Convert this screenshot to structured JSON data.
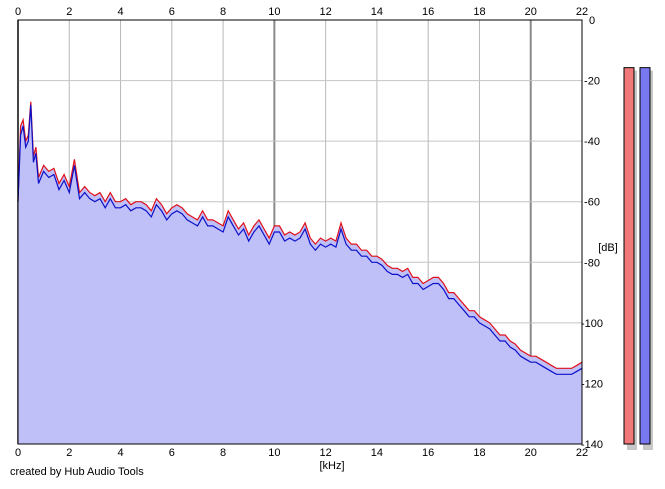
{
  "chart_data": {
    "type": "area",
    "xlabel": "[kHz]",
    "ylabel": "[dB]",
    "xlim": [
      0,
      22
    ],
    "ylim": [
      -140,
      0
    ],
    "x_ticks": [
      0,
      2,
      4,
      6,
      8,
      10,
      12,
      14,
      16,
      18,
      20,
      22
    ],
    "y_ticks": [
      0,
      -20,
      -40,
      -60,
      -80,
      -100,
      -120,
      -140
    ],
    "grid": true,
    "series": [
      {
        "color": "#e0101a",
        "points": [
          [
            0.0,
            -60
          ],
          [
            0.1,
            -35
          ],
          [
            0.2,
            -33
          ],
          [
            0.3,
            -40
          ],
          [
            0.4,
            -38
          ],
          [
            0.5,
            -27
          ],
          [
            0.6,
            -45
          ],
          [
            0.7,
            -42
          ],
          [
            0.8,
            -52
          ],
          [
            1.0,
            -48
          ],
          [
            1.2,
            -50
          ],
          [
            1.4,
            -49
          ],
          [
            1.6,
            -54
          ],
          [
            1.8,
            -51
          ],
          [
            2.0,
            -55
          ],
          [
            2.2,
            -46
          ],
          [
            2.4,
            -57
          ],
          [
            2.6,
            -55
          ],
          [
            2.8,
            -57
          ],
          [
            3.0,
            -58
          ],
          [
            3.2,
            -57
          ],
          [
            3.4,
            -60
          ],
          [
            3.6,
            -57
          ],
          [
            3.8,
            -60
          ],
          [
            4.0,
            -60
          ],
          [
            4.2,
            -59
          ],
          [
            4.4,
            -61
          ],
          [
            4.6,
            -60
          ],
          [
            4.8,
            -60
          ],
          [
            5.0,
            -61
          ],
          [
            5.2,
            -63
          ],
          [
            5.4,
            -59
          ],
          [
            5.6,
            -61
          ],
          [
            5.8,
            -64
          ],
          [
            6.0,
            -62
          ],
          [
            6.2,
            -61
          ],
          [
            6.4,
            -62
          ],
          [
            6.6,
            -64
          ],
          [
            6.8,
            -65
          ],
          [
            7.0,
            -66
          ],
          [
            7.2,
            -63
          ],
          [
            7.4,
            -66
          ],
          [
            7.6,
            -66
          ],
          [
            7.8,
            -67
          ],
          [
            8.0,
            -68
          ],
          [
            8.2,
            -63
          ],
          [
            8.4,
            -66
          ],
          [
            8.6,
            -69
          ],
          [
            8.8,
            -67
          ],
          [
            9.0,
            -71
          ],
          [
            9.2,
            -68
          ],
          [
            9.4,
            -66
          ],
          [
            9.6,
            -69
          ],
          [
            9.8,
            -72
          ],
          [
            10.0,
            -68
          ],
          [
            10.2,
            -68
          ],
          [
            10.4,
            -71
          ],
          [
            10.6,
            -70
          ],
          [
            10.8,
            -71
          ],
          [
            11.0,
            -70
          ],
          [
            11.2,
            -67
          ],
          [
            11.4,
            -72
          ],
          [
            11.6,
            -74
          ],
          [
            11.8,
            -72
          ],
          [
            12.0,
            -73
          ],
          [
            12.2,
            -72
          ],
          [
            12.4,
            -73
          ],
          [
            12.6,
            -67
          ],
          [
            12.8,
            -72
          ],
          [
            13.0,
            -74
          ],
          [
            13.2,
            -74
          ],
          [
            13.4,
            -76
          ],
          [
            13.6,
            -76
          ],
          [
            13.8,
            -78
          ],
          [
            14.0,
            -78
          ],
          [
            14.2,
            -79
          ],
          [
            14.4,
            -81
          ],
          [
            14.6,
            -82
          ],
          [
            14.8,
            -82
          ],
          [
            15.0,
            -83
          ],
          [
            15.2,
            -82
          ],
          [
            15.4,
            -85
          ],
          [
            15.6,
            -85
          ],
          [
            15.8,
            -87
          ],
          [
            16.0,
            -86
          ],
          [
            16.2,
            -85
          ],
          [
            16.4,
            -85
          ],
          [
            16.6,
            -87
          ],
          [
            16.8,
            -90
          ],
          [
            17.0,
            -90
          ],
          [
            17.2,
            -92
          ],
          [
            17.4,
            -94
          ],
          [
            17.6,
            -96
          ],
          [
            17.8,
            -96
          ],
          [
            18.0,
            -98
          ],
          [
            18.2,
            -99
          ],
          [
            18.4,
            -100
          ],
          [
            18.6,
            -102
          ],
          [
            18.8,
            -104
          ],
          [
            19.0,
            -104
          ],
          [
            19.2,
            -106
          ],
          [
            19.4,
            -107
          ],
          [
            19.6,
            -109
          ],
          [
            19.8,
            -110
          ],
          [
            20.0,
            -111
          ],
          [
            20.2,
            -111
          ],
          [
            20.4,
            -112
          ],
          [
            20.6,
            -113
          ],
          [
            20.8,
            -114
          ],
          [
            21.0,
            -115
          ],
          [
            21.2,
            -115
          ],
          [
            21.4,
            -115
          ],
          [
            21.6,
            -115
          ],
          [
            21.8,
            -114
          ],
          [
            22.0,
            -113
          ]
        ]
      },
      {
        "color": "#0b10c8",
        "points": [
          [
            0.0,
            -60
          ],
          [
            0.1,
            -38
          ],
          [
            0.2,
            -35
          ],
          [
            0.3,
            -42
          ],
          [
            0.4,
            -40
          ],
          [
            0.5,
            -28
          ],
          [
            0.6,
            -47
          ],
          [
            0.7,
            -44
          ],
          [
            0.8,
            -54
          ],
          [
            1.0,
            -50
          ],
          [
            1.2,
            -52
          ],
          [
            1.4,
            -51
          ],
          [
            1.6,
            -56
          ],
          [
            1.8,
            -53
          ],
          [
            2.0,
            -57
          ],
          [
            2.2,
            -48
          ],
          [
            2.4,
            -59
          ],
          [
            2.6,
            -57
          ],
          [
            2.8,
            -59
          ],
          [
            3.0,
            -60
          ],
          [
            3.2,
            -59
          ],
          [
            3.4,
            -62
          ],
          [
            3.6,
            -59
          ],
          [
            3.8,
            -62
          ],
          [
            4.0,
            -62
          ],
          [
            4.2,
            -61
          ],
          [
            4.4,
            -63
          ],
          [
            4.6,
            -62
          ],
          [
            4.8,
            -62
          ],
          [
            5.0,
            -63
          ],
          [
            5.2,
            -65
          ],
          [
            5.4,
            -61
          ],
          [
            5.6,
            -63
          ],
          [
            5.8,
            -66
          ],
          [
            6.0,
            -64
          ],
          [
            6.2,
            -63
          ],
          [
            6.4,
            -64
          ],
          [
            6.6,
            -66
          ],
          [
            6.8,
            -67
          ],
          [
            7.0,
            -68
          ],
          [
            7.2,
            -65
          ],
          [
            7.4,
            -68
          ],
          [
            7.6,
            -68
          ],
          [
            7.8,
            -69
          ],
          [
            8.0,
            -70
          ],
          [
            8.2,
            -65
          ],
          [
            8.4,
            -68
          ],
          [
            8.6,
            -71
          ],
          [
            8.8,
            -69
          ],
          [
            9.0,
            -73
          ],
          [
            9.2,
            -70
          ],
          [
            9.4,
            -68
          ],
          [
            9.6,
            -71
          ],
          [
            9.8,
            -74
          ],
          [
            10.0,
            -70
          ],
          [
            10.2,
            -70
          ],
          [
            10.4,
            -73
          ],
          [
            10.6,
            -72
          ],
          [
            10.8,
            -73
          ],
          [
            11.0,
            -72
          ],
          [
            11.2,
            -69
          ],
          [
            11.4,
            -74
          ],
          [
            11.6,
            -76
          ],
          [
            11.8,
            -74
          ],
          [
            12.0,
            -75
          ],
          [
            12.2,
            -74
          ],
          [
            12.4,
            -75
          ],
          [
            12.6,
            -69
          ],
          [
            12.8,
            -74
          ],
          [
            13.0,
            -76
          ],
          [
            13.2,
            -76
          ],
          [
            13.4,
            -78
          ],
          [
            13.6,
            -78
          ],
          [
            13.8,
            -80
          ],
          [
            14.0,
            -80
          ],
          [
            14.2,
            -81
          ],
          [
            14.4,
            -83
          ],
          [
            14.6,
            -84
          ],
          [
            14.8,
            -84
          ],
          [
            15.0,
            -85
          ],
          [
            15.2,
            -84
          ],
          [
            15.4,
            -87
          ],
          [
            15.6,
            -87
          ],
          [
            15.8,
            -89
          ],
          [
            16.0,
            -88
          ],
          [
            16.2,
            -87
          ],
          [
            16.4,
            -87
          ],
          [
            16.6,
            -89
          ],
          [
            16.8,
            -92
          ],
          [
            17.0,
            -92
          ],
          [
            17.2,
            -94
          ],
          [
            17.4,
            -96
          ],
          [
            17.6,
            -98
          ],
          [
            17.8,
            -98
          ],
          [
            18.0,
            -100
          ],
          [
            18.2,
            -101
          ],
          [
            18.4,
            -102
          ],
          [
            18.6,
            -104
          ],
          [
            18.8,
            -106
          ],
          [
            19.0,
            -106
          ],
          [
            19.2,
            -108
          ],
          [
            19.4,
            -109
          ],
          [
            19.6,
            -111
          ],
          [
            19.8,
            -112
          ],
          [
            20.0,
            -113
          ],
          [
            20.2,
            -113
          ],
          [
            20.4,
            -114
          ],
          [
            20.6,
            -115
          ],
          [
            20.8,
            -116
          ],
          [
            21.0,
            -117
          ],
          [
            21.2,
            -117
          ],
          [
            21.4,
            -117
          ],
          [
            21.6,
            -117
          ],
          [
            21.8,
            -116
          ],
          [
            22.0,
            -115
          ]
        ]
      }
    ],
    "area_color": "#c0c0f8",
    "level_meters": [
      {
        "color": "#f07878",
        "level": 0.025
      },
      {
        "color": "#7878f0",
        "level": 0.025
      }
    ]
  },
  "footer": {
    "credit": "created by Hub Audio Tools"
  }
}
